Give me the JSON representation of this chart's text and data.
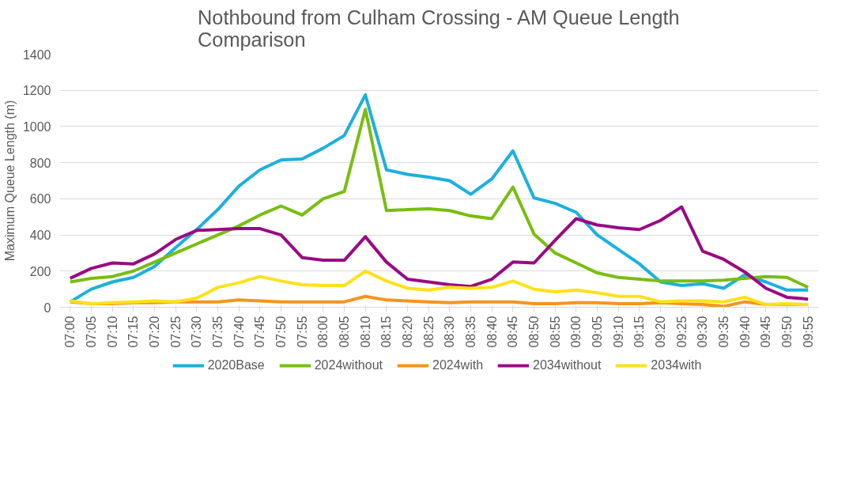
{
  "chart_data": {
    "type": "line",
    "title": "Nothbound from Culham Crossing - AM Queue Length\nComparison",
    "ylabel": "Maximum Queue Length (m)",
    "categories": [
      "07:00",
      "07:05",
      "07:10",
      "07:15",
      "07:20",
      "07:25",
      "07:30",
      "07:35",
      "07:40",
      "07:45",
      "07:50",
      "07:55",
      "08:00",
      "08:05",
      "08:10",
      "08:15",
      "08:20",
      "08:25",
      "08:30",
      "08:35",
      "08:40",
      "08:45",
      "08:50",
      "08:55",
      "09:00",
      "09:05",
      "09:10",
      "09:15",
      "09:20",
      "09:25",
      "09:30",
      "09:35",
      "09:40",
      "09:45",
      "09:50",
      "09:55"
    ],
    "series": [
      {
        "name": "2020Base",
        "color": "#1ab0e0",
        "values": [
          30,
          100,
          140,
          165,
          225,
          330,
          430,
          540,
          670,
          760,
          815,
          820,
          880,
          950,
          1175,
          760,
          735,
          720,
          700,
          625,
          710,
          865,
          605,
          575,
          525,
          400,
          320,
          240,
          140,
          120,
          130,
          105,
          180,
          140,
          95,
          95
        ]
      },
      {
        "name": "2024without",
        "color": "#78be0f",
        "values": [
          140,
          160,
          170,
          200,
          250,
          300,
          350,
          400,
          450,
          510,
          560,
          510,
          600,
          640,
          1095,
          535,
          540,
          545,
          535,
          505,
          490,
          665,
          405,
          300,
          245,
          190,
          165,
          155,
          145,
          145,
          145,
          150,
          160,
          170,
          165,
          110
        ]
      },
      {
        "name": "2024with",
        "color": "#f7941d",
        "values": [
          30,
          20,
          20,
          25,
          25,
          30,
          30,
          30,
          40,
          35,
          30,
          30,
          30,
          30,
          60,
          40,
          35,
          30,
          25,
          30,
          30,
          30,
          20,
          20,
          25,
          25,
          20,
          20,
          25,
          20,
          15,
          5,
          30,
          15,
          15,
          15
        ]
      },
      {
        "name": "2034without",
        "color": "#990a83",
        "values": [
          160,
          215,
          245,
          240,
          295,
          375,
          425,
          430,
          435,
          435,
          400,
          275,
          260,
          260,
          390,
          250,
          155,
          140,
          125,
          115,
          155,
          250,
          245,
          370,
          490,
          455,
          440,
          430,
          480,
          555,
          310,
          265,
          195,
          105,
          55,
          45
        ]
      },
      {
        "name": "2034with",
        "color": "#ffe119",
        "values": [
          35,
          20,
          25,
          30,
          35,
          30,
          50,
          110,
          135,
          170,
          145,
          125,
          120,
          120,
          200,
          145,
          105,
          95,
          110,
          105,
          110,
          145,
          100,
          85,
          95,
          80,
          60,
          60,
          30,
          35,
          35,
          30,
          55,
          15,
          20,
          15
        ]
      }
    ],
    "ylim": [
      0,
      1400
    ],
    "yticks": [
      0,
      200,
      400,
      600,
      800,
      1000,
      1200,
      1400
    ],
    "grid": "y",
    "legend": "bottom",
    "marker": "none",
    "line_style": "solid"
  }
}
